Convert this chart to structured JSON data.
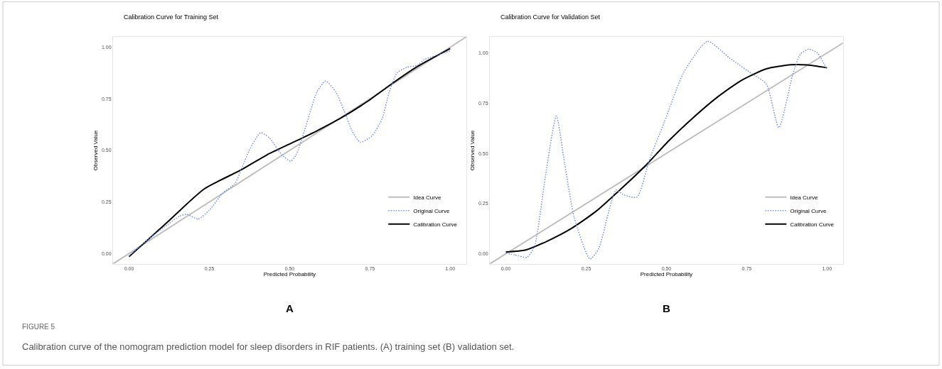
{
  "chart_data": [
    {
      "type": "line",
      "title": "Calibration Curve for Training Set",
      "xlabel": "Predicted Probability",
      "ylabel": "Observed Value",
      "xlim": [
        -0.05,
        1.05
      ],
      "ylim": [
        -0.05,
        1.05
      ],
      "xticks": [
        {
          "value": 0,
          "label": "0.00"
        },
        {
          "value": 0.25,
          "label": "0.25"
        },
        {
          "value": 0.5,
          "label": "0.50"
        },
        {
          "value": 0.75,
          "label": "0.75"
        },
        {
          "value": 1,
          "label": "1.00"
        }
      ],
      "yticks": [
        {
          "value": 0,
          "label": "0.00"
        },
        {
          "value": 0.25,
          "label": "0.25"
        },
        {
          "value": 0.5,
          "label": "0.50"
        },
        {
          "value": 0.75,
          "label": "0.75"
        },
        {
          "value": 1,
          "label": "1.00"
        }
      ],
      "legend": "bottom right",
      "marker": "none",
      "annotations": [
        "A",
        "FIGURE 5",
        "Calibration curve of the nomogram prediction model for sleep disorders in RIF patients. (A) training set (B) validation set."
      ],
      "series": [
        {
          "name": "Idea Curve",
          "color": "#bebebe",
          "line_style": "solid",
          "x": [
            -0.05,
            1.05
          ],
          "values": [
            -0.05,
            1.05
          ]
        },
        {
          "name": "Original Curve",
          "color": "#6f8ff0",
          "line_style": "dotted",
          "x": [
            0,
            0.06,
            0.12,
            0.156,
            0.18,
            0.215,
            0.25,
            0.29,
            0.33,
            0.35,
            0.374,
            0.41,
            0.437,
            0.476,
            0.503,
            0.52,
            0.546,
            0.585,
            0.612,
            0.644,
            0.67,
            0.694,
            0.72,
            0.757,
            0.788,
            0.81,
            0.835,
            0.866,
            0.897,
            0.92,
            0.975,
            1.0
          ],
          "values": [
            -0.01,
            0.07,
            0.14,
            0.18,
            0.19,
            0.167,
            0.21,
            0.29,
            0.34,
            0.41,
            0.5,
            0.586,
            0.56,
            0.478,
            0.448,
            0.478,
            0.595,
            0.783,
            0.836,
            0.783,
            0.69,
            0.595,
            0.539,
            0.572,
            0.654,
            0.783,
            0.877,
            0.903,
            0.912,
            0.94,
            0.97,
            0.982
          ]
        },
        {
          "name": "Calibration Curve",
          "color": "#000000",
          "line_style": "solid",
          "x": [
            0,
            0.117,
            0.234,
            0.351,
            0.429,
            0.507,
            0.585,
            0.663,
            0.741,
            0.819,
            0.897,
            1.0
          ],
          "values": [
            -0.015,
            0.149,
            0.313,
            0.407,
            0.478,
            0.536,
            0.595,
            0.66,
            0.736,
            0.824,
            0.906,
            0.994
          ]
        }
      ]
    },
    {
      "type": "line",
      "title": "Calibration Curve for Validation Set",
      "xlabel": "Predicted Probability",
      "ylabel": "Observed Value",
      "xlim": [
        -0.05,
        1.05
      ],
      "ylim": [
        -0.05,
        1.08
      ],
      "xticks": [
        {
          "value": 0,
          "label": "0.00"
        },
        {
          "value": 0.25,
          "label": "0.25"
        },
        {
          "value": 0.5,
          "label": "0.50"
        },
        {
          "value": 0.75,
          "label": "0.75"
        },
        {
          "value": 1,
          "label": "1.00"
        }
      ],
      "yticks": [
        {
          "value": 0,
          "label": "0.00"
        },
        {
          "value": 0.25,
          "label": "0.25"
        },
        {
          "value": 0.5,
          "label": "0.50"
        },
        {
          "value": 0.75,
          "label": "0.75"
        },
        {
          "value": 1,
          "label": "1.00"
        }
      ],
      "legend": "bottom right",
      "marker": "none",
      "annotations": [
        "B"
      ],
      "series": [
        {
          "name": "Idea Curve",
          "color": "#bebebe",
          "line_style": "solid",
          "x": [
            -0.05,
            1.05
          ],
          "values": [
            -0.05,
            1.05
          ]
        },
        {
          "name": "Original Curve",
          "color": "#6f8ff0",
          "line_style": "dotted",
          "x": [
            0,
            0.028,
            0.066,
            0.089,
            0.123,
            0.157,
            0.183,
            0.213,
            0.262,
            0.289,
            0.343,
            0.365,
            0.408,
            0.448,
            0.493,
            0.554,
            0.628,
            0.697,
            0.766,
            0.811,
            0.85,
            0.894,
            0.917,
            0.943,
            0.97,
            0.998
          ],
          "values": [
            0.004,
            -0.006,
            -0.017,
            0.038,
            0.385,
            0.686,
            0.449,
            0.179,
            -0.026,
            0.026,
            0.318,
            0.295,
            0.282,
            0.474,
            0.654,
            0.904,
            1.058,
            0.974,
            0.897,
            0.846,
            0.628,
            0.897,
            0.994,
            1.019,
            1.0,
            0.923
          ]
        },
        {
          "name": "Calibration Curve",
          "color": "#000000",
          "line_style": "solid",
          "x": [
            0,
            0.062,
            0.13,
            0.206,
            0.281,
            0.357,
            0.433,
            0.508,
            0.584,
            0.66,
            0.735,
            0.811,
            0.887,
            0.939,
            1.0
          ],
          "values": [
            0.009,
            0.019,
            0.064,
            0.128,
            0.212,
            0.321,
            0.436,
            0.564,
            0.679,
            0.782,
            0.865,
            0.921,
            0.941,
            0.94,
            0.926
          ]
        }
      ]
    }
  ]
}
